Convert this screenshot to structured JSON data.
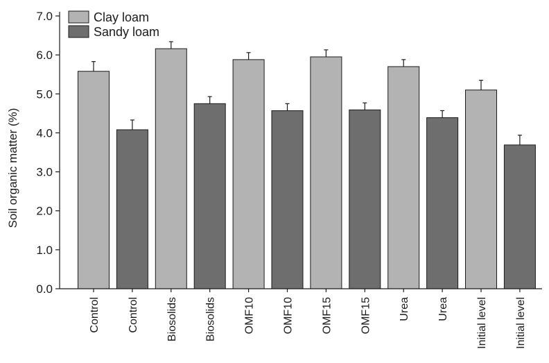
{
  "chart_data": {
    "type": "bar",
    "title": "",
    "xlabel": "",
    "ylabel": "Soil organic matter (%)",
    "ylim": [
      0,
      7
    ],
    "yticks": [
      "0.0",
      "1.0",
      "2.0",
      "3.0",
      "4.0",
      "5.0",
      "6.0",
      "7.0"
    ],
    "grid": false,
    "legend_position": "top-left",
    "categories": [
      "Control",
      "Control",
      "Biosolids",
      "Biosolids",
      "OMF10",
      "OMF10",
      "OMF15",
      "OMF15",
      "Urea",
      "Urea",
      "Initial level",
      "Initial level"
    ],
    "series": [
      {
        "name": "Clay loam",
        "color": "#b3b3b3"
      },
      {
        "name": "Sandy loam",
        "color": "#6e6e6e"
      }
    ],
    "bars": [
      {
        "category": "Control",
        "series": "Clay loam",
        "value": 5.58,
        "error": 0.25
      },
      {
        "category": "Control",
        "series": "Sandy loam",
        "value": 4.08,
        "error": 0.25
      },
      {
        "category": "Biosolids",
        "series": "Clay loam",
        "value": 6.16,
        "error": 0.18
      },
      {
        "category": "Biosolids",
        "series": "Sandy loam",
        "value": 4.75,
        "error": 0.18
      },
      {
        "category": "OMF10",
        "series": "Clay loam",
        "value": 5.88,
        "error": 0.18
      },
      {
        "category": "OMF10",
        "series": "Sandy loam",
        "value": 4.57,
        "error": 0.18
      },
      {
        "category": "OMF15",
        "series": "Clay loam",
        "value": 5.95,
        "error": 0.18
      },
      {
        "category": "OMF15",
        "series": "Sandy loam",
        "value": 4.59,
        "error": 0.18
      },
      {
        "category": "Urea",
        "series": "Clay loam",
        "value": 5.7,
        "error": 0.18
      },
      {
        "category": "Urea",
        "series": "Sandy loam",
        "value": 4.39,
        "error": 0.18
      },
      {
        "category": "Initial level",
        "series": "Clay loam",
        "value": 5.1,
        "error": 0.25
      },
      {
        "category": "Initial level",
        "series": "Sandy loam",
        "value": 3.69,
        "error": 0.25
      }
    ]
  }
}
